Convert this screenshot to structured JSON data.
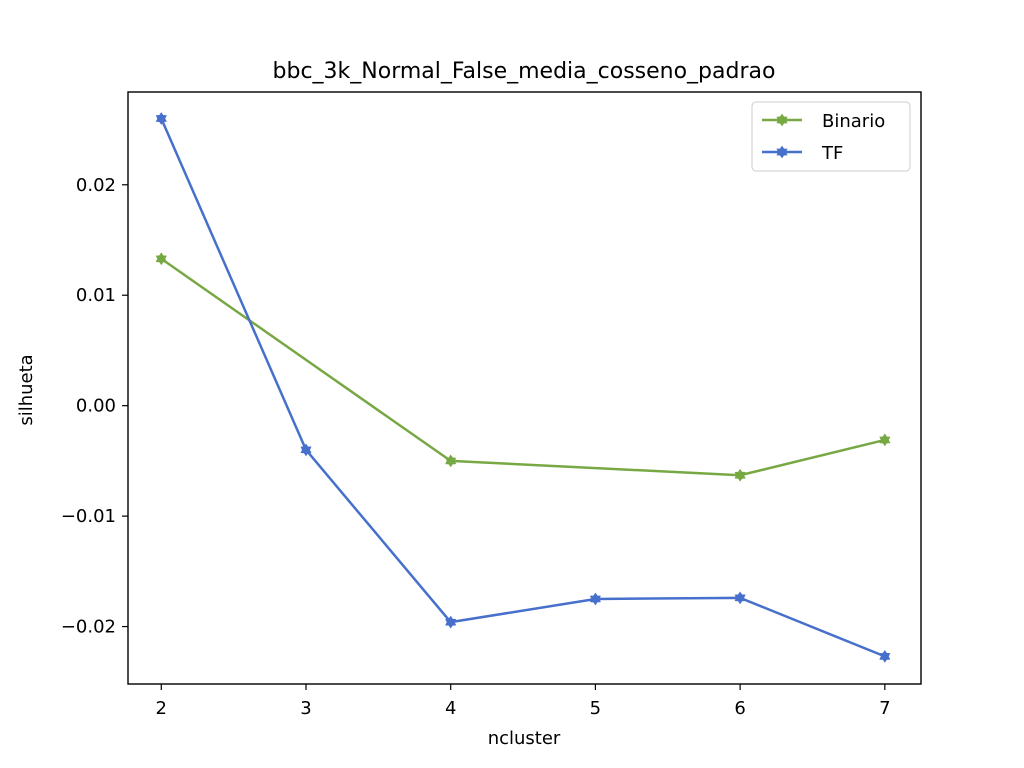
{
  "chart_data": {
    "type": "line",
    "title": "bbc_3k_Normal_False_media_cosseno_padrao",
    "xlabel": "ncluster",
    "ylabel": "silhueta",
    "xlim": [
      1.77,
      7.25
    ],
    "ylim": [
      -0.0252,
      0.0284
    ],
    "xticks": [
      2,
      3,
      4,
      5,
      6,
      7
    ],
    "xtick_labels": [
      "2",
      "3",
      "4",
      "5",
      "6",
      "7"
    ],
    "yticks": [
      -0.02,
      -0.01,
      0.0,
      0.01,
      0.02
    ],
    "ytick_labels": [
      "−0.02",
      "−0.01",
      "0.00",
      "0.01",
      "0.02"
    ],
    "grid": false,
    "legend_position": "top-right",
    "series": [
      {
        "name": "Binario",
        "color": "#77a843",
        "marker": "star-icon",
        "x": [
          2,
          4,
          6,
          7
        ],
        "y": [
          0.0133,
          -0.005,
          -0.0063,
          -0.0031
        ]
      },
      {
        "name": "TF",
        "color": "#4670cc",
        "marker": "star-icon",
        "x": [
          2,
          3,
          4,
          5,
          6,
          7
        ],
        "y": [
          0.026,
          -0.004,
          -0.0196,
          -0.0175,
          -0.0174,
          -0.0227
        ]
      }
    ]
  }
}
